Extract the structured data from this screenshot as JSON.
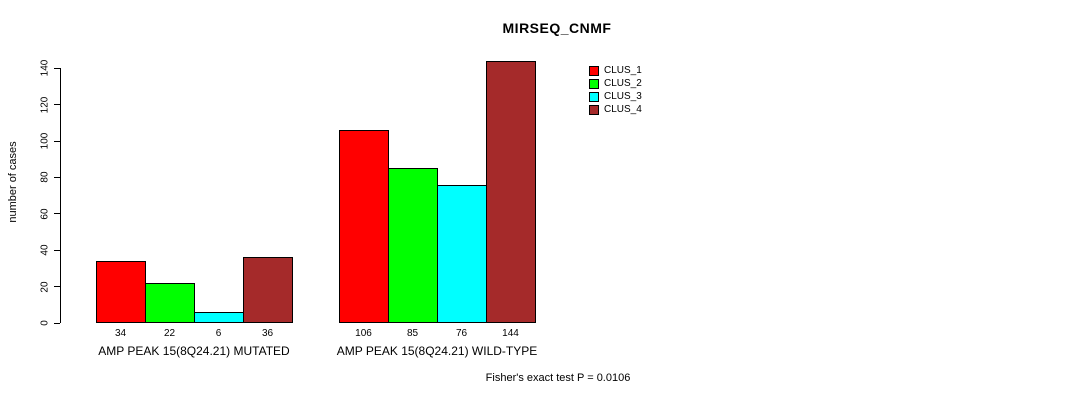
{
  "chart_data": {
    "type": "bar",
    "title": "MIRSEQ_CNMF",
    "ylabel": "number of cases",
    "ylim": [
      0,
      140
    ],
    "yticks": [
      0,
      20,
      40,
      60,
      80,
      100,
      120,
      140
    ],
    "grid": false,
    "legend_position": "right",
    "categories": [
      "AMP PEAK 15(8Q24.21) MUTATED",
      "AMP PEAK 15(8Q24.21) WILD-TYPE"
    ],
    "series": [
      {
        "name": "CLUS_1",
        "color": "#FF0000",
        "values": [
          34,
          106
        ]
      },
      {
        "name": "CLUS_2",
        "color": "#00FF00",
        "values": [
          22,
          85
        ]
      },
      {
        "name": "CLUS_3",
        "color": "#00FFFF",
        "values": [
          6,
          76
        ]
      },
      {
        "name": "CLUS_4",
        "color": "#A52A2A",
        "values": [
          36,
          144
        ]
      }
    ],
    "groups": [
      {
        "label": "AMP PEAK 15(8Q24.21) MUTATED",
        "values": [
          34,
          22,
          6,
          36
        ]
      },
      {
        "label": "AMP PEAK 15(8Q24.21) WILD-TYPE",
        "values": [
          106,
          85,
          76,
          144
        ]
      }
    ],
    "footnote": "Fisher's exact test P = 0.0106"
  }
}
